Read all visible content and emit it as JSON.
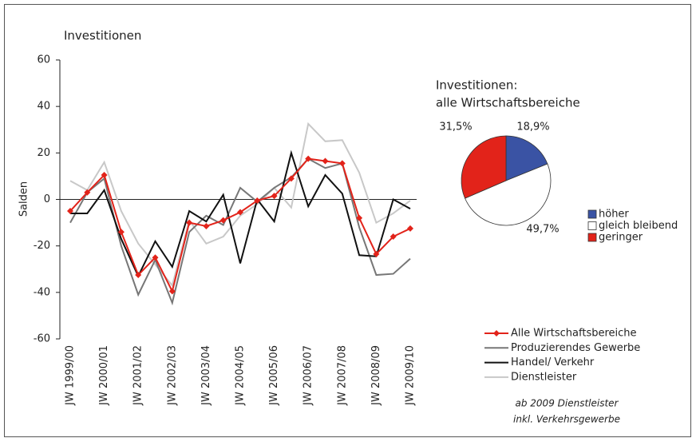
{
  "chart_data": [
    {
      "type": "line",
      "title": "Investitionen",
      "y_label": "Salden",
      "categories": [
        "JW 1999/00",
        null,
        "JW 2000/01",
        null,
        "JW 2001/02",
        null,
        "JW 2002/03",
        null,
        "JW 2003/04",
        null,
        "JW 2004/05",
        null,
        "JW 2005/06",
        null,
        "JW 2006/07",
        null,
        "JW 2007/08",
        null,
        "JW 2008/09",
        null,
        "JW 2009/10"
      ],
      "series": [
        {
          "name": "Alle Wirtschaftsbereiche",
          "color": "#e2231a",
          "markers": true,
          "values": [
            -5,
            3,
            10.5,
            -14,
            -32.5,
            -25,
            -39.5,
            -10,
            -11.5,
            -9,
            -5.5,
            -0.5,
            1.5,
            9,
            17.5,
            16.5,
            15.5,
            -8,
            -23.5,
            -16,
            -12.5
          ]
        },
        {
          "name": "Produzierendes Gewerbe",
          "color": "#777777",
          "values": [
            -10,
            3,
            9,
            -20,
            -41,
            -26,
            -44.5,
            -14,
            -7,
            -11,
            5,
            -1,
            5,
            9.5,
            17.5,
            13.5,
            15.5,
            -12,
            -32.5,
            -32,
            -25.5
          ]
        },
        {
          "name": "Handel/ Verkehr",
          "color": "#111111",
          "values": [
            -6,
            -6,
            4,
            -17,
            -33,
            -18,
            -29,
            -5,
            -9.5,
            2,
            -27.5,
            0,
            -9.5,
            20,
            -3,
            10.5,
            2.5,
            -24,
            -24.5,
            0,
            -4
          ]
        },
        {
          "name": "Dienstleister",
          "color": "#c8c8c8",
          "values": [
            8,
            4,
            16,
            -5,
            -19,
            -28,
            -37,
            -9,
            -19,
            -16,
            -7,
            -2,
            5,
            -3.5,
            32.5,
            25,
            25.5,
            11.5,
            -10,
            -6,
            -0.5
          ]
        }
      ],
      "ylim": [
        -60,
        60
      ],
      "yticks": [
        -60,
        -40,
        -20,
        0,
        20,
        40,
        60
      ],
      "grid": false,
      "legend": "bottom-right",
      "note": [
        "ab 2009 Dienstleister",
        "inkl. Verkehrsgewerbe"
      ]
    },
    {
      "type": "pie",
      "title": [
        "Investitionen:",
        "alle Wirtschaftsbereiche"
      ],
      "categories": [
        "höher",
        "gleich bleibend",
        "geringer"
      ],
      "values": [
        18.9,
        49.7,
        31.5
      ],
      "value_labels": [
        "18,9%",
        "49,7%",
        "31,5%"
      ],
      "colors": [
        "#3a53a4",
        "#ffffff",
        "#e2231a"
      ]
    }
  ]
}
